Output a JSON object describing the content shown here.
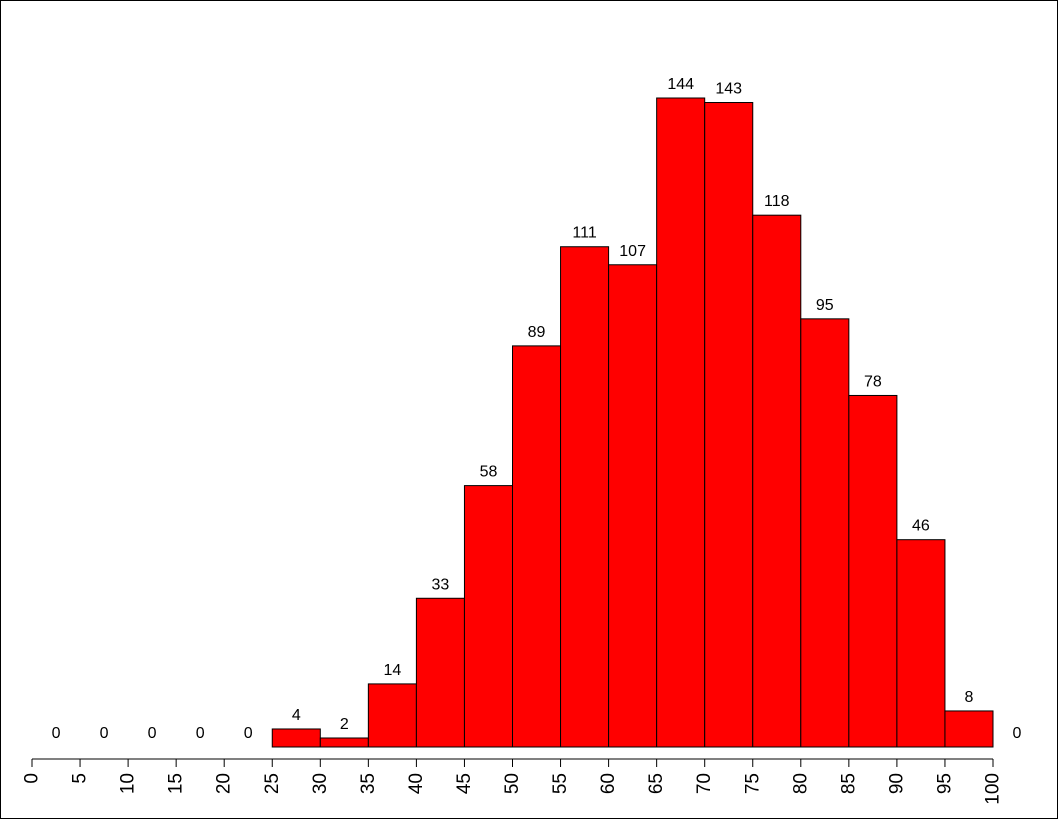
{
  "chart_data": {
    "type": "bar",
    "title": "",
    "xlabel": "",
    "ylabel": "",
    "categories": [
      "0",
      "5",
      "10",
      "15",
      "20",
      "25",
      "30",
      "35",
      "40",
      "45",
      "50",
      "55",
      "60",
      "65",
      "70",
      "75",
      "80",
      "85",
      "90",
      "95",
      "100"
    ],
    "values": [
      0,
      0,
      0,
      0,
      0,
      4,
      2,
      14,
      33,
      58,
      89,
      111,
      107,
      144,
      143,
      118,
      95,
      78,
      46,
      8,
      0
    ],
    "ylim": [
      0,
      150
    ],
    "grid": false,
    "legend": "none",
    "bar_color": "#FF0000",
    "bar_edge_color": "#000000"
  }
}
